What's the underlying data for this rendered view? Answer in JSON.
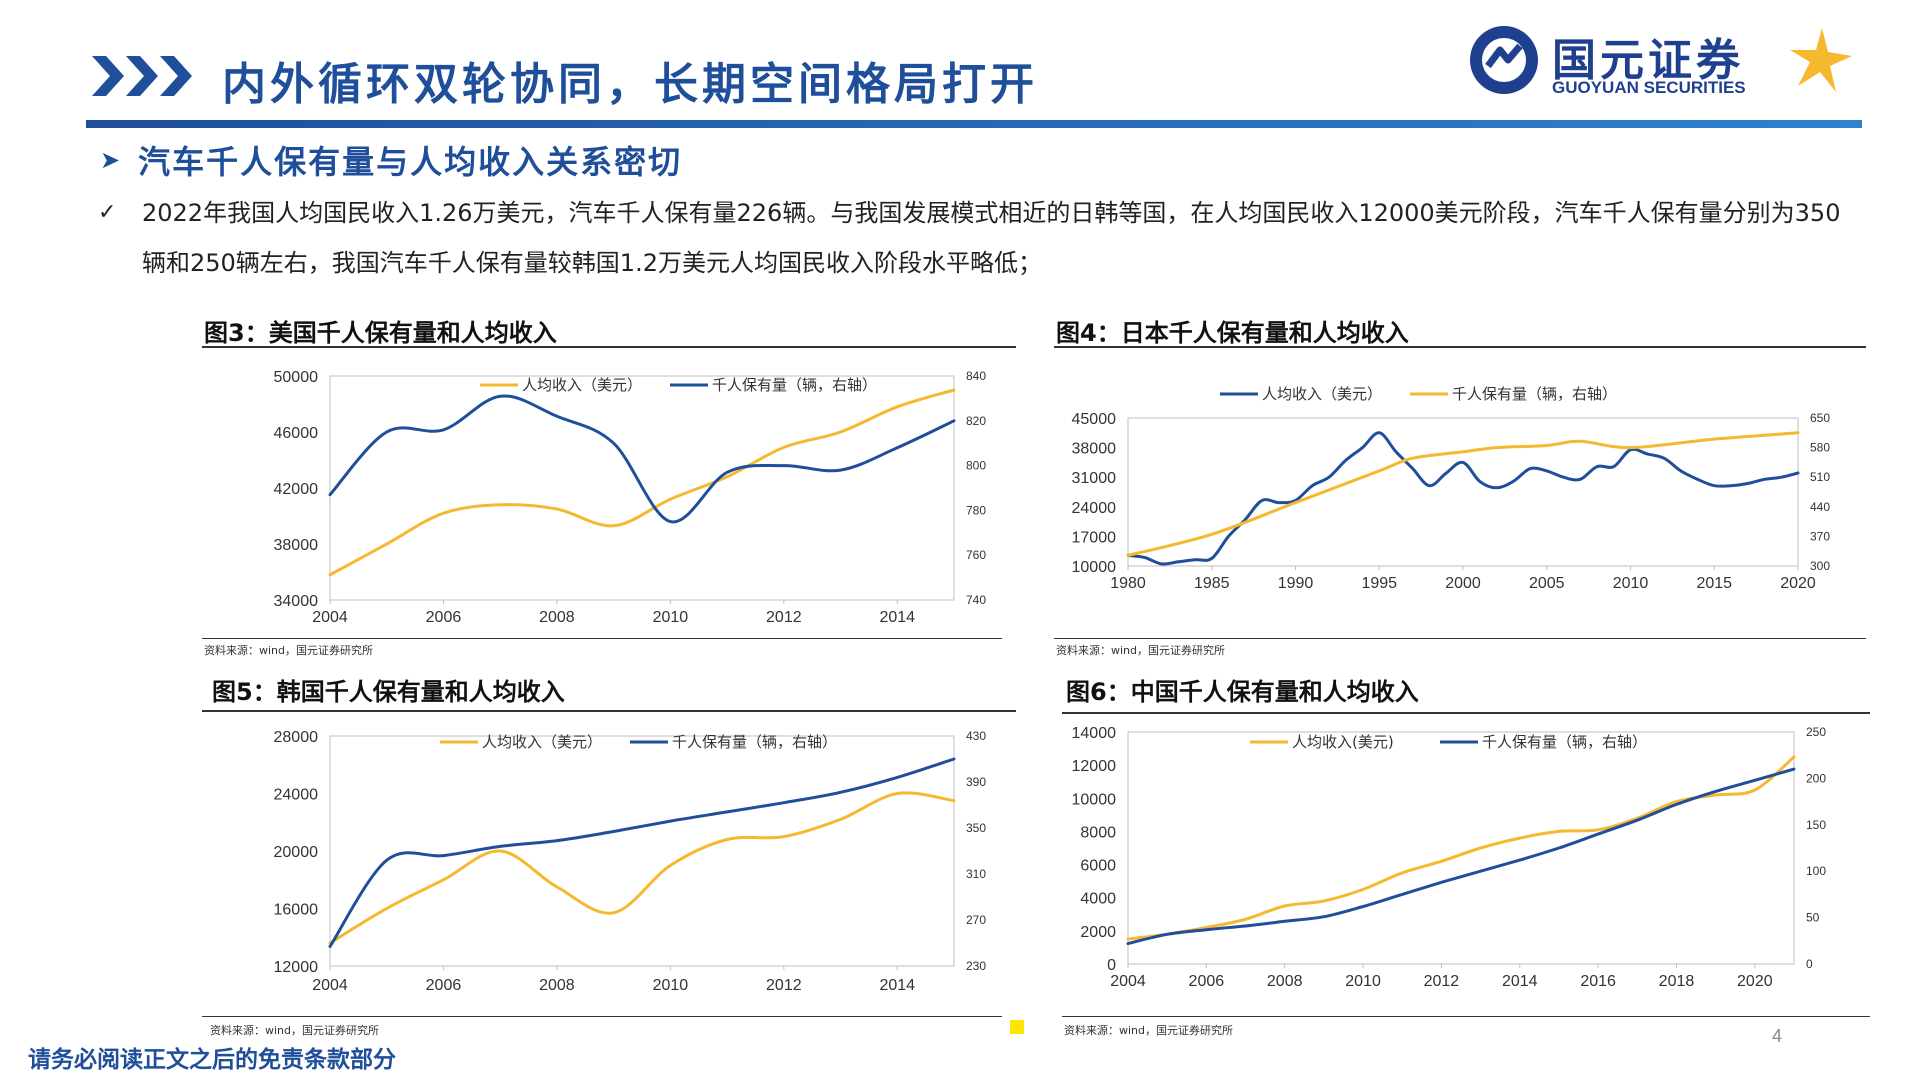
{
  "header": {
    "title": "内外循环双轮协同，长期空间格局打开",
    "logo_cn": "国元证券",
    "logo_en": "GUOYUAN SECURITIES"
  },
  "section": {
    "title": "汽车千人保有量与人均收入关系密切",
    "bullet": "2022年我国人均国民收入1.26万美元，汽车千人保有量226辆。与我国发展模式相近的日韩等国，在人均国民收入12000美元阶段，汽车千人保有量分别为350辆和250辆左右，我国汽车千人保有量较韩国1.2万美元人均国民收入阶段水平略低；"
  },
  "colors": {
    "primary_blue": "#1F4E9A",
    "series_blue": "#1F4E9A",
    "series_yellow": "#F5B82E"
  },
  "icons": {
    "header": "triple-chevron-icon",
    "section": "arrow-right-icon",
    "bullet": "check-icon",
    "logo": "guoyuan-logo-icon"
  },
  "footer": {
    "disclaimer": "请务必阅读正文之后的免责条款部分",
    "page": "4"
  },
  "chart_data": [
    {
      "id": "us",
      "type": "line",
      "title": "图3：美国千人保有量和人均收入",
      "source": "资料来源：wind，国元证券研究所",
      "legend_placement": "top-right",
      "xlim": [
        2004,
        2015
      ],
      "xticks": [
        2004,
        2006,
        2008,
        2010,
        2012,
        2014
      ],
      "ylim": [
        34000,
        50000
      ],
      "yticks": [
        34000,
        38000,
        42000,
        46000,
        50000
      ],
      "y2lim": [
        740,
        840
      ],
      "y2ticks": [
        740,
        760,
        780,
        800,
        820,
        840
      ],
      "series": [
        {
          "name": "人均收入（美元）",
          "axis": "left",
          "color": "#F5B82E",
          "x": [
            2004,
            2005,
            2006,
            2007,
            2008,
            2009,
            2010,
            2011,
            2012,
            2013,
            2014,
            2015
          ],
          "y": [
            35800,
            38000,
            40200,
            40800,
            40500,
            39300,
            41200,
            42800,
            44900,
            46000,
            47800,
            49000
          ]
        },
        {
          "name": "千人保有量（辆，右轴）",
          "axis": "right",
          "color": "#1F4E9A",
          "x": [
            2004,
            2005,
            2006,
            2007,
            2008,
            2009,
            2010,
            2011,
            2012,
            2013,
            2014,
            2015
          ],
          "y": [
            787,
            815,
            816,
            831,
            822,
            810,
            775,
            797,
            800,
            798,
            808,
            820
          ]
        }
      ]
    },
    {
      "id": "jp",
      "type": "line",
      "title": "图4：日本千人保有量和人均收入",
      "source": "资料来源：wind，国元证券研究所",
      "legend_placement": "top",
      "xlim": [
        1980,
        2020
      ],
      "xticks": [
        1980,
        1985,
        1990,
        1995,
        2000,
        2005,
        2010,
        2015,
        2020
      ],
      "ylim": [
        10000,
        45000
      ],
      "yticks": [
        10000,
        17000,
        24000,
        31000,
        38000,
        45000
      ],
      "y2lim": [
        300,
        650
      ],
      "y2ticks": [
        300,
        370,
        440,
        510,
        580,
        650
      ],
      "series": [
        {
          "name": "人均收入（美元）",
          "axis": "left",
          "color": "#1F4E9A",
          "x": [
            1980,
            1981,
            1982,
            1983,
            1984,
            1985,
            1986,
            1987,
            1988,
            1989,
            1990,
            1991,
            1992,
            1993,
            1994,
            1995,
            1996,
            1997,
            1998,
            1999,
            2000,
            2001,
            2002,
            2003,
            2004,
            2005,
            2006,
            2007,
            2008,
            2009,
            2010,
            2011,
            2012,
            2013,
            2014,
            2015,
            2016,
            2017,
            2018,
            2019,
            2020
          ],
          "y": [
            12500,
            12000,
            10500,
            11000,
            11500,
            11800,
            17000,
            21000,
            25500,
            25000,
            25500,
            29000,
            31000,
            35000,
            38000,
            41500,
            37000,
            33000,
            29000,
            32000,
            34500,
            30000,
            28500,
            30000,
            33000,
            32500,
            31000,
            30500,
            33500,
            33500,
            37500,
            36500,
            35500,
            32500,
            30500,
            29000,
            29000,
            29500,
            30500,
            31000,
            32000
          ]
        },
        {
          "name": "千人保有量（辆，右轴）",
          "axis": "right",
          "color": "#F5B82E",
          "x": [
            1980,
            1985,
            1990,
            1995,
            1997,
            2000,
            2002,
            2005,
            2007,
            2010,
            2015,
            2020
          ],
          "y": [
            325,
            375,
            450,
            525,
            555,
            570,
            580,
            585,
            595,
            580,
            600,
            615
          ]
        }
      ]
    },
    {
      "id": "kr",
      "type": "line",
      "title": "图5：韩国千人保有量和人均收入",
      "source": "资料来源：wind，国元证券研究所",
      "legend_placement": "top-right",
      "xlim": [
        2004,
        2015
      ],
      "xticks": [
        2004,
        2006,
        2008,
        2010,
        2012,
        2014
      ],
      "ylim": [
        12000,
        28000
      ],
      "yticks": [
        12000,
        16000,
        20000,
        24000,
        28000
      ],
      "y2lim": [
        230,
        430
      ],
      "y2ticks": [
        230,
        270,
        310,
        350,
        390,
        430
      ],
      "series": [
        {
          "name": "人均收入（美元）",
          "axis": "left",
          "color": "#F5B82E",
          "x": [
            2004,
            2005,
            2006,
            2007,
            2008,
            2009,
            2010,
            2011,
            2012,
            2013,
            2014,
            2015
          ],
          "y": [
            13600,
            16000,
            18000,
            20000,
            17500,
            15700,
            19000,
            20800,
            21000,
            22200,
            24000,
            23500
          ]
        },
        {
          "name": "千人保有量（辆，右轴）",
          "axis": "right",
          "color": "#1F4E9A",
          "x": [
            2004,
            2005,
            2006,
            2007,
            2008,
            2009,
            2010,
            2011,
            2012,
            2013,
            2014,
            2015
          ],
          "y": [
            247,
            322,
            326,
            334,
            339,
            347,
            356,
            364,
            372,
            381,
            394,
            410
          ]
        }
      ]
    },
    {
      "id": "cn",
      "type": "line",
      "title": "图6：中国千人保有量和人均收入",
      "source": "资料来源：wind，国元证券研究所",
      "legend_placement": "top",
      "xlim": [
        2004,
        2021
      ],
      "xticks": [
        2004,
        2006,
        2008,
        2010,
        2012,
        2014,
        2016,
        2018,
        2020
      ],
      "ylim": [
        0,
        14000
      ],
      "yticks": [
        0,
        2000,
        4000,
        6000,
        8000,
        10000,
        12000,
        14000
      ],
      "y2lim": [
        0,
        250
      ],
      "y2ticks": [
        0,
        50,
        100,
        150,
        200,
        250
      ],
      "series": [
        {
          "name": "人均收入(美元)",
          "axis": "left",
          "color": "#F5B82E",
          "x": [
            2004,
            2005,
            2006,
            2007,
            2008,
            2009,
            2010,
            2011,
            2012,
            2013,
            2014,
            2015,
            2016,
            2017,
            2018,
            2019,
            2020,
            2021
          ],
          "y": [
            1500,
            1800,
            2200,
            2700,
            3500,
            3800,
            4500,
            5500,
            6200,
            7000,
            7600,
            8000,
            8100,
            8800,
            9800,
            10200,
            10500,
            12500
          ]
        },
        {
          "name": "千人保有量（辆，右轴）",
          "axis": "right",
          "color": "#1F4E9A",
          "x": [
            2004,
            2005,
            2006,
            2007,
            2008,
            2009,
            2010,
            2011,
            2012,
            2013,
            2014,
            2015,
            2016,
            2017,
            2018,
            2019,
            2020,
            2021
          ],
          "y": [
            22,
            32,
            37,
            41,
            46,
            51,
            62,
            75,
            88,
            100,
            112,
            125,
            140,
            155,
            172,
            186,
            198,
            210
          ]
        }
      ]
    }
  ]
}
